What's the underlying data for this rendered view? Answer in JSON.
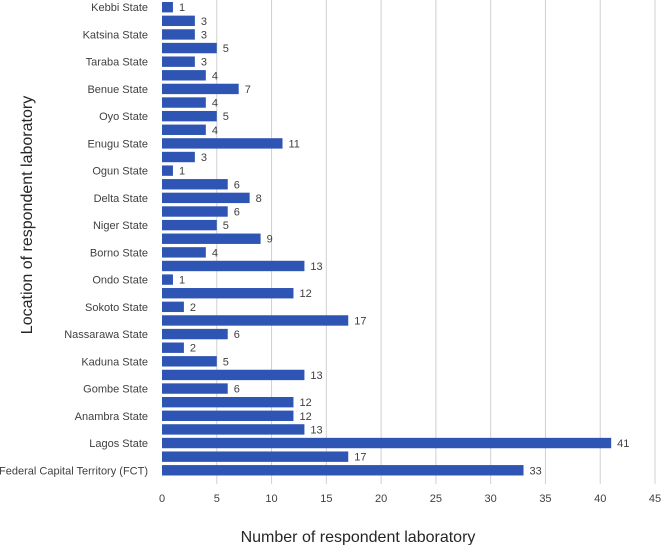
{
  "chart_data": {
    "type": "bar",
    "orientation": "horizontal",
    "title": "",
    "xlabel": "Number of respondent laboratory",
    "ylabel": "Location of respondent laboratory",
    "xlim": [
      0,
      45
    ],
    "xticks": [
      0,
      5,
      10,
      15,
      20,
      25,
      30,
      35,
      40,
      45
    ],
    "grid": "vertical",
    "legend": "none",
    "colors": {
      "bar": "#2f55b4",
      "grid": "#d0d0d0",
      "text": "#404040"
    },
    "bars": [
      {
        "label": "Kebbi State",
        "value": 1
      },
      {
        "label": "",
        "value": 3
      },
      {
        "label": "Katsina State",
        "value": 3
      },
      {
        "label": "",
        "value": 5
      },
      {
        "label": "Taraba State",
        "value": 3
      },
      {
        "label": "",
        "value": 4
      },
      {
        "label": "Benue State",
        "value": 7
      },
      {
        "label": "",
        "value": 4
      },
      {
        "label": "Oyo State",
        "value": 5
      },
      {
        "label": "",
        "value": 4
      },
      {
        "label": "Enugu State",
        "value": 11
      },
      {
        "label": "",
        "value": 3
      },
      {
        "label": "Ogun State",
        "value": 1
      },
      {
        "label": "",
        "value": 6
      },
      {
        "label": "Delta State",
        "value": 8
      },
      {
        "label": "",
        "value": 6
      },
      {
        "label": "Niger State",
        "value": 5
      },
      {
        "label": "",
        "value": 9
      },
      {
        "label": "Borno State",
        "value": 4
      },
      {
        "label": "",
        "value": 13
      },
      {
        "label": "Ondo State",
        "value": 1
      },
      {
        "label": "",
        "value": 12
      },
      {
        "label": "Sokoto State",
        "value": 2
      },
      {
        "label": "",
        "value": 17
      },
      {
        "label": "Nassarawa State",
        "value": 6
      },
      {
        "label": "",
        "value": 2
      },
      {
        "label": "Kaduna State",
        "value": 5
      },
      {
        "label": "",
        "value": 13
      },
      {
        "label": "Gombe State",
        "value": 6
      },
      {
        "label": "",
        "value": 12
      },
      {
        "label": "Anambra State",
        "value": 12
      },
      {
        "label": "",
        "value": 13
      },
      {
        "label": "Lagos State",
        "value": 41
      },
      {
        "label": "",
        "value": 17
      },
      {
        "label": "Federal Capital Territory (FCT)",
        "value": 33
      }
    ]
  }
}
